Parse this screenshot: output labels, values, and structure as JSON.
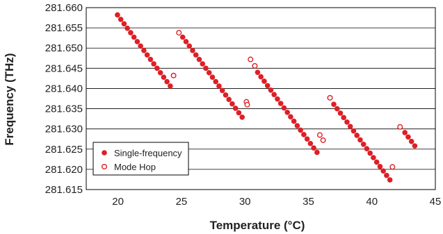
{
  "chart_data": {
    "type": "scatter",
    "xlabel": "Temperature (°C)",
    "ylabel": "Frequency (THz)",
    "xlim": [
      17.5,
      45
    ],
    "ylim": [
      281.615,
      281.66
    ],
    "x_ticks": [
      20,
      25,
      30,
      35,
      40,
      45
    ],
    "y_ticks": [
      281.615,
      281.62,
      281.625,
      281.63,
      281.635,
      281.64,
      281.645,
      281.65,
      281.655,
      281.66
    ],
    "x_tick_labels": [
      "20",
      "25",
      "30",
      "35",
      "40",
      "45"
    ],
    "y_tick_labels": [
      "281.615",
      "281.620",
      "281.625",
      "281.630",
      "281.635",
      "281.640",
      "281.645",
      "281.650",
      "281.655",
      "281.660"
    ],
    "grid": "horizontal",
    "legend_position": "bottom-left",
    "series": [
      {
        "name": "Single-frequency",
        "marker": "filled-circle",
        "color": "#dd1f26",
        "points": [
          [
            19.96,
            281.6582
          ],
          [
            20.22,
            281.6571
          ],
          [
            20.48,
            281.656
          ],
          [
            20.74,
            281.6549
          ],
          [
            21.0,
            281.6538
          ],
          [
            21.26,
            281.6527
          ],
          [
            21.52,
            281.6516
          ],
          [
            21.78,
            281.6505
          ],
          [
            22.04,
            281.6494
          ],
          [
            22.3,
            281.6483
          ],
          [
            22.56,
            281.6472
          ],
          [
            22.82,
            281.6461
          ],
          [
            23.08,
            281.645
          ],
          [
            23.34,
            281.6439
          ],
          [
            23.6,
            281.6428
          ],
          [
            23.86,
            281.6417
          ],
          [
            24.12,
            281.6406
          ],
          [
            25.1,
            281.6527
          ],
          [
            25.36,
            281.6516
          ],
          [
            25.62,
            281.6505
          ],
          [
            25.88,
            281.6494
          ],
          [
            26.14,
            281.6483
          ],
          [
            26.4,
            281.6472
          ],
          [
            26.66,
            281.6461
          ],
          [
            26.92,
            281.645
          ],
          [
            27.18,
            281.6439
          ],
          [
            27.44,
            281.6428
          ],
          [
            27.7,
            281.6417
          ],
          [
            27.96,
            281.6406
          ],
          [
            28.22,
            281.6395
          ],
          [
            28.48,
            281.6384
          ],
          [
            28.74,
            281.6373
          ],
          [
            29.0,
            281.6362
          ],
          [
            29.26,
            281.6351
          ],
          [
            29.52,
            281.634
          ],
          [
            29.78,
            281.6329
          ],
          [
            31.0,
            281.644
          ],
          [
            31.26,
            281.6429
          ],
          [
            31.52,
            281.6418
          ],
          [
            31.78,
            281.6407
          ],
          [
            32.04,
            281.6396
          ],
          [
            32.3,
            281.6385
          ],
          [
            32.56,
            281.6374
          ],
          [
            32.82,
            281.6363
          ],
          [
            33.08,
            281.6352
          ],
          [
            33.34,
            281.6341
          ],
          [
            33.6,
            281.633
          ],
          [
            33.86,
            281.6319
          ],
          [
            34.12,
            281.6308
          ],
          [
            34.38,
            281.6297
          ],
          [
            34.64,
            281.6286
          ],
          [
            34.9,
            281.6275
          ],
          [
            35.16,
            281.6264
          ],
          [
            35.42,
            281.6253
          ],
          [
            35.68,
            281.6242
          ],
          [
            37.0,
            281.6361
          ],
          [
            37.26,
            281.635
          ],
          [
            37.52,
            281.6339
          ],
          [
            37.78,
            281.6328
          ],
          [
            38.04,
            281.6317
          ],
          [
            38.3,
            281.6306
          ],
          [
            38.56,
            281.6295
          ],
          [
            38.82,
            281.6284
          ],
          [
            39.08,
            281.6273
          ],
          [
            39.34,
            281.6262
          ],
          [
            39.6,
            281.6251
          ],
          [
            39.86,
            281.624
          ],
          [
            40.12,
            281.6229
          ],
          [
            40.38,
            281.6218
          ],
          [
            40.64,
            281.6207
          ],
          [
            40.9,
            281.6196
          ],
          [
            41.16,
            281.6185
          ],
          [
            41.42,
            281.6174
          ],
          [
            42.6,
            281.6291
          ],
          [
            42.86,
            281.628
          ],
          [
            43.12,
            281.6269
          ],
          [
            43.38,
            281.6258
          ]
        ]
      },
      {
        "name": "Mode Hop",
        "marker": "open-circle",
        "color": "#dd1f26",
        "points": [
          [
            24.38,
            281.6432
          ],
          [
            24.8,
            281.6538
          ],
          [
            30.12,
            281.6367
          ],
          [
            30.18,
            281.636
          ],
          [
            30.44,
            281.6472
          ],
          [
            30.78,
            281.6456
          ],
          [
            35.9,
            281.6285
          ],
          [
            36.16,
            281.6272
          ],
          [
            36.7,
            281.6377
          ],
          [
            41.62,
            281.6206
          ],
          [
            42.22,
            281.6305
          ]
        ]
      }
    ]
  }
}
